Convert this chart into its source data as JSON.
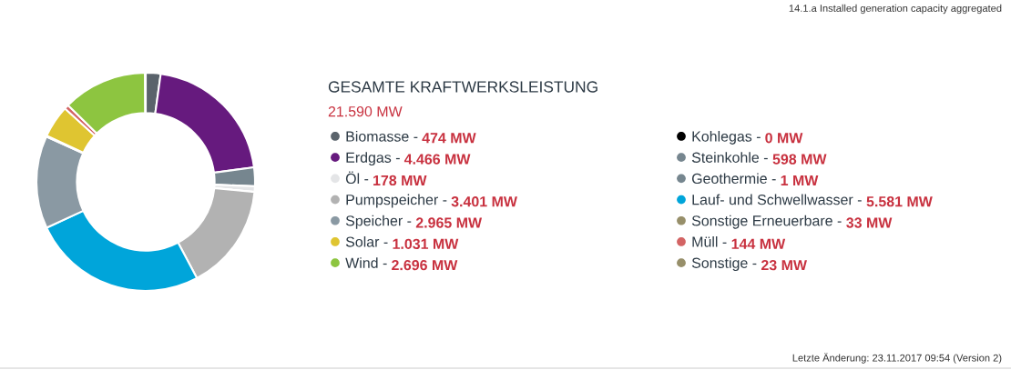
{
  "chart_data": {
    "type": "donut",
    "title": "GESAMTE KRAFTWERKSLEISTUNG",
    "subtitle": "21.590 MW",
    "categories": [
      "Biomasse -",
      "Kohlegas -",
      "Erdgas -",
      "Steinkohle -",
      "Öl -",
      "Geothermie -",
      "Pumpspeicher -",
      "Lauf- und Schwellwasser -",
      "Speicher -",
      "Sonstige Erneuerbare -",
      "Solar -",
      "Müll -",
      "Wind -",
      "Sonstige -"
    ],
    "values": [
      474,
      0,
      4466,
      598,
      178,
      1,
      3401,
      5581,
      2965,
      33,
      1031,
      144,
      2696,
      23
    ],
    "value_labels": [
      "474 MW",
      "0 MW",
      "4.466 MW",
      "598 MW",
      "178 MW",
      "1 MW",
      "3.401 MW",
      "5.581 MW",
      "2.965 MW",
      "33 MW",
      "1.031 MW",
      "144 MW",
      "2.696 MW",
      "23 MW"
    ],
    "colors": [
      "#5a636b",
      "#000000",
      "#661a7e",
      "#76868f",
      "#e4e5e7",
      "#76868f",
      "#b2b2b2",
      "#00a5da",
      "#8a99a3",
      "#978f6a",
      "#dfc531",
      "#d36464",
      "#8dc540",
      "#978f6a"
    ],
    "legend": "right",
    "annotations": [
      "14.1.a Installed generation capacity aggregated",
      "Letzte Änderung: 23.11.2017 09:54 (Version 2)"
    ]
  }
}
